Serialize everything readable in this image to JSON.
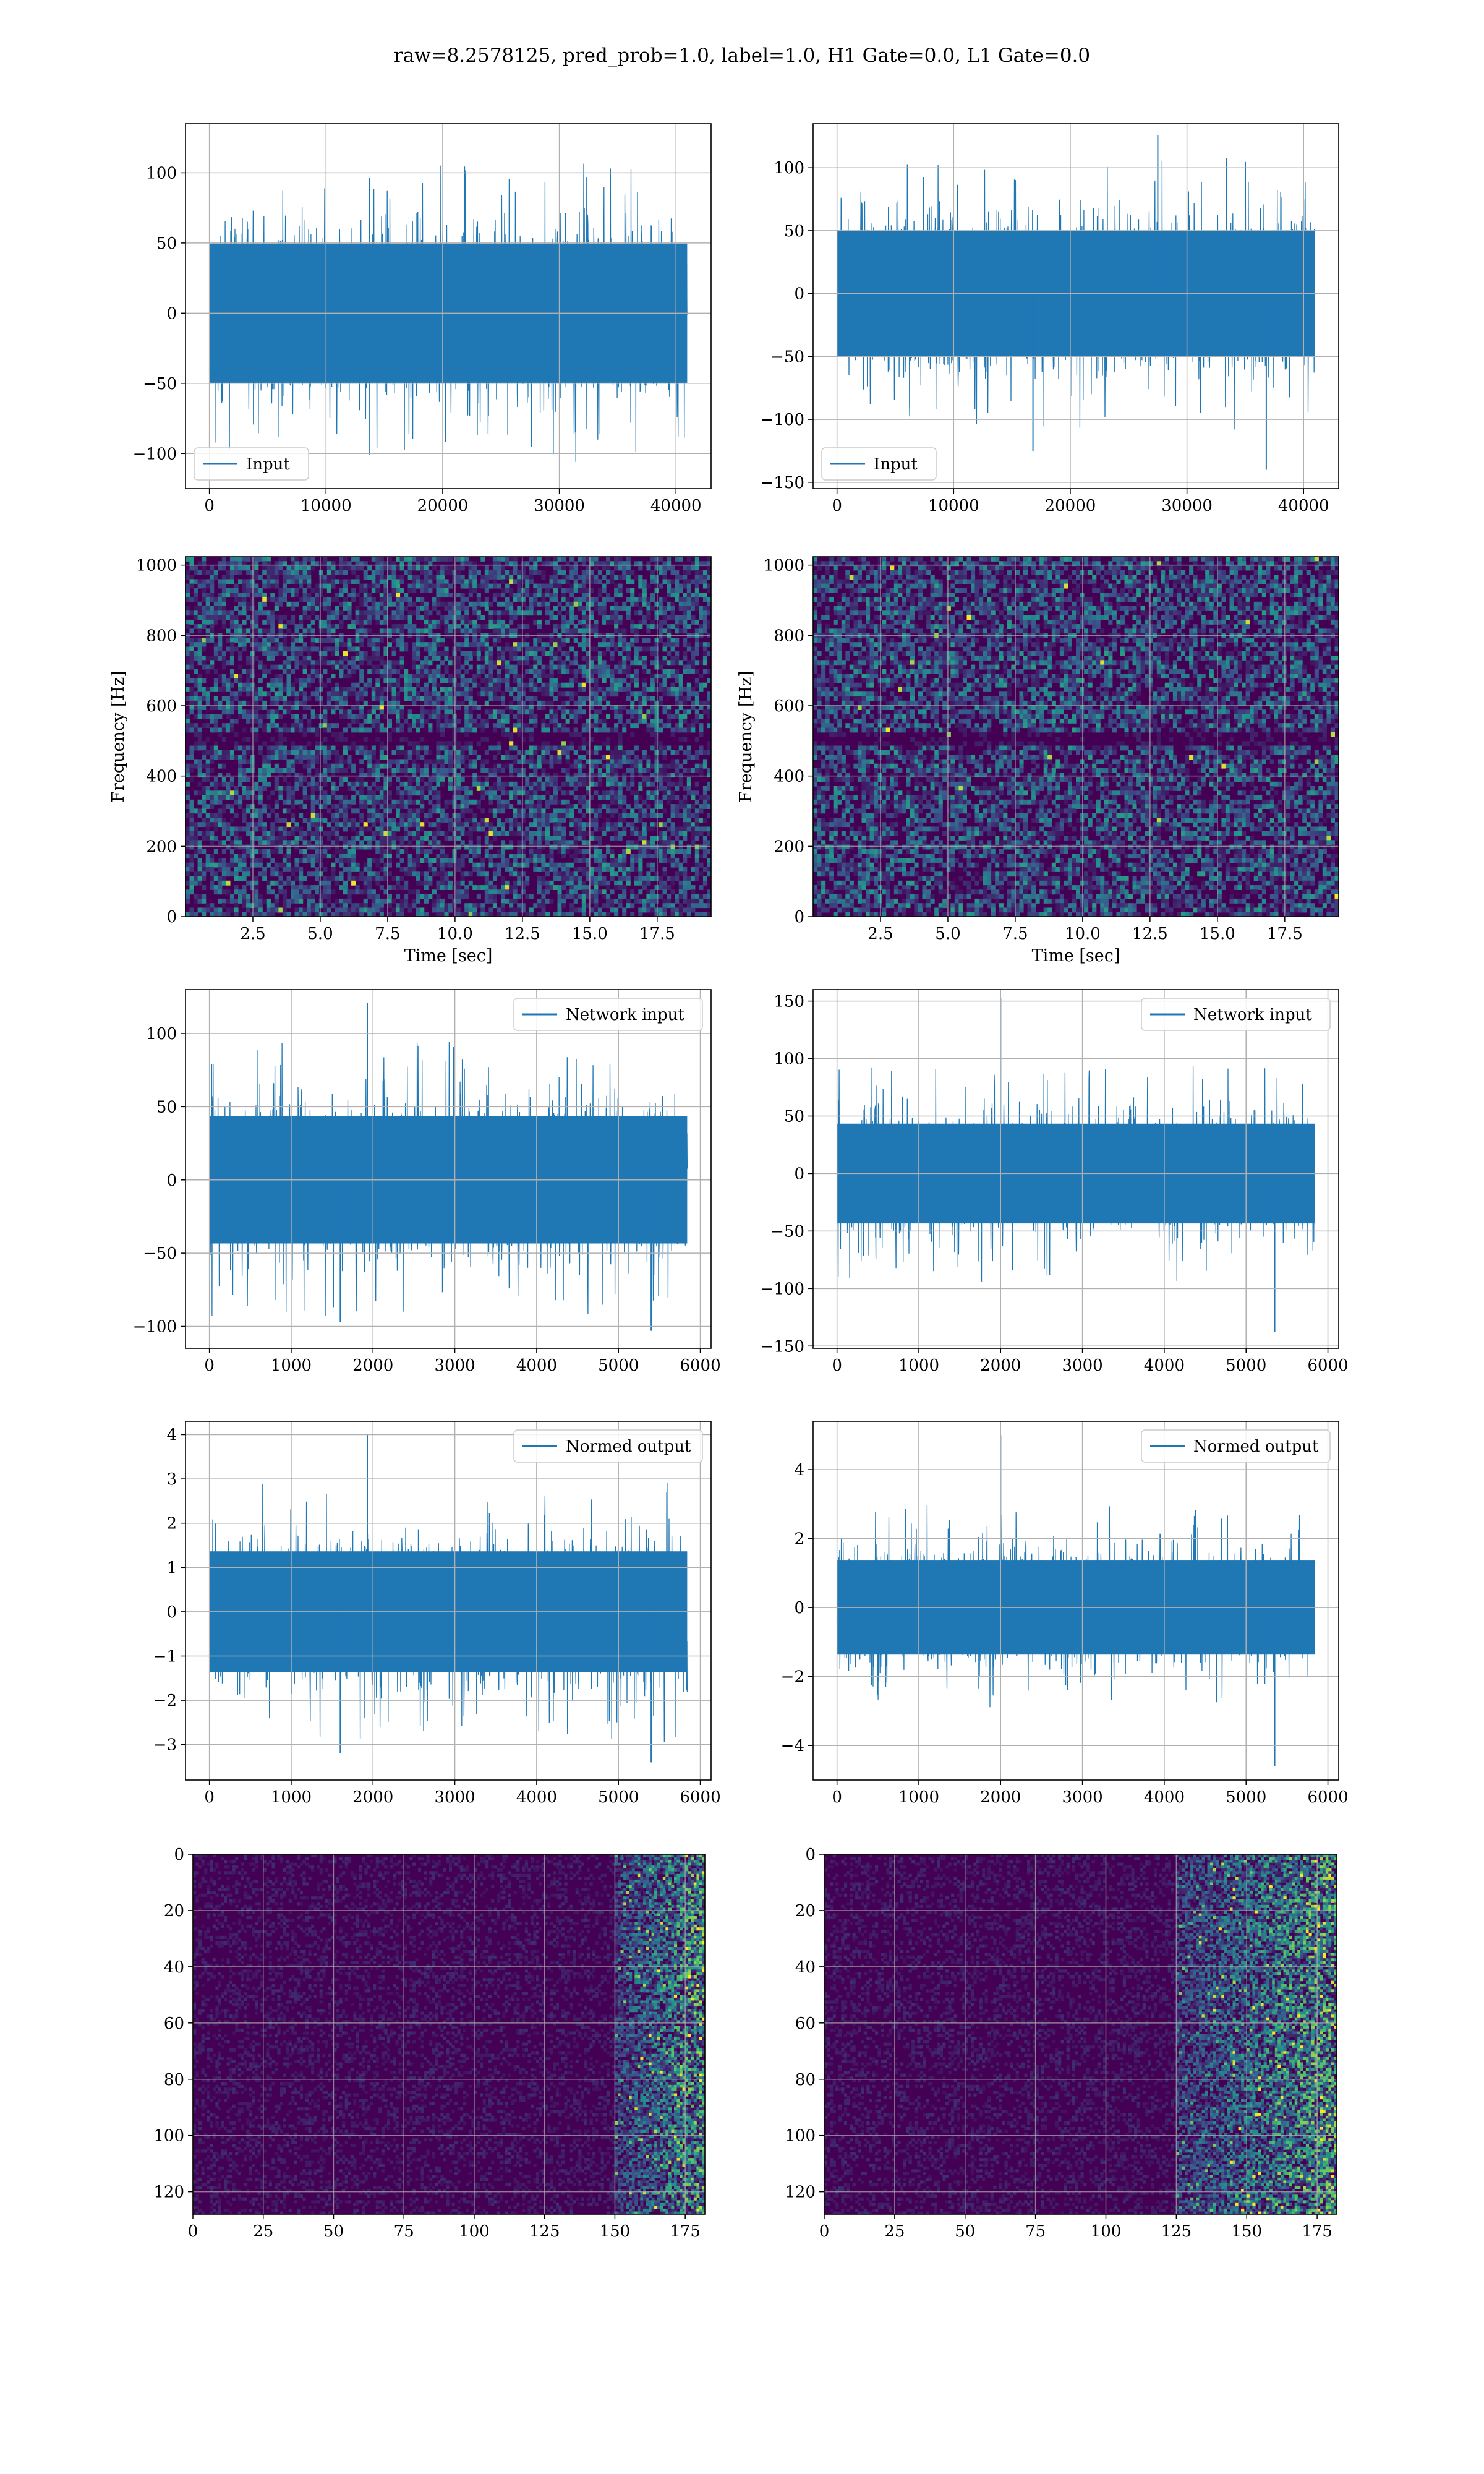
{
  "suptitle": "raw=8.2578125, pred_prob=1.0, label=1.0, H1 Gate=0.0, L1 Gate=0.0",
  "colors": {
    "series": "#1f77b4",
    "grid": "#b0b0b0",
    "viridis_dark": "#440154",
    "viridis_mid": "#21918c",
    "viridis_bright": "#fde725"
  },
  "chart_data": [
    {
      "id": "input-h1",
      "type": "line",
      "style": "noise",
      "legend": "Input",
      "legend_loc": "lower left",
      "x_range": [
        0,
        40960
      ],
      "xlim": [
        -2048,
        43008
      ],
      "ylim": [
        -125,
        135
      ],
      "xticks": [
        0,
        10000,
        20000,
        30000,
        40000
      ],
      "xticklabels": [
        "0",
        "10000",
        "20000",
        "30000",
        "40000"
      ],
      "yticks": [
        -100,
        -50,
        0,
        50,
        100
      ],
      "yticklabels": [
        "−100",
        "−50",
        "0",
        "50",
        "100"
      ],
      "y_extent": [
        -118,
        124
      ],
      "envelope": 80,
      "grid": true,
      "xlabel": "",
      "ylabel": "",
      "peaks": []
    },
    {
      "id": "input-l1",
      "type": "line",
      "style": "noise",
      "legend": "Input",
      "legend_loc": "lower left",
      "x_range": [
        0,
        40960
      ],
      "xlim": [
        -2048,
        43008
      ],
      "ylim": [
        -155,
        135
      ],
      "xticks": [
        0,
        10000,
        20000,
        30000,
        40000
      ],
      "xticklabels": [
        "0",
        "10000",
        "20000",
        "30000",
        "40000"
      ],
      "yticks": [
        -150,
        -100,
        -50,
        0,
        50,
        100
      ],
      "yticklabels": [
        "−150",
        "−100",
        "−50",
        "0",
        "50",
        "100"
      ],
      "y_extent": [
        -140,
        126
      ],
      "envelope": 80,
      "grid": true,
      "xlabel": "",
      "ylabel": "",
      "peaks": [
        [
          16800,
          -125
        ],
        [
          36800,
          -140
        ],
        [
          27500,
          126
        ]
      ]
    },
    {
      "id": "spec-h1",
      "type": "heatmap",
      "style": "spectrogram",
      "xlim": [
        0,
        19.5
      ],
      "ylim": [
        0,
        1024
      ],
      "xticks": [
        2.5,
        5.0,
        7.5,
        10.0,
        12.5,
        15.0,
        17.5
      ],
      "xticklabels": [
        "2.5",
        "5.0",
        "7.5",
        "10.0",
        "12.5",
        "15.0",
        "17.5"
      ],
      "yticks": [
        0,
        200,
        400,
        600,
        800,
        1000
      ],
      "yticklabels": [
        "0",
        "200",
        "400",
        "600",
        "800",
        "1000"
      ],
      "xlabel": "Time [sec]",
      "ylabel": "Frequency [Hz]",
      "dark_band": [
        480,
        520
      ],
      "grid": true
    },
    {
      "id": "spec-l1",
      "type": "heatmap",
      "style": "spectrogram",
      "xlim": [
        0,
        19.5
      ],
      "ylim": [
        0,
        1024
      ],
      "xticks": [
        2.5,
        5.0,
        7.5,
        10.0,
        12.5,
        15.0,
        17.5
      ],
      "xticklabels": [
        "2.5",
        "5.0",
        "7.5",
        "10.0",
        "12.5",
        "15.0",
        "17.5"
      ],
      "yticks": [
        0,
        200,
        400,
        600,
        800,
        1000
      ],
      "yticklabels": [
        "0",
        "200",
        "400",
        "600",
        "800",
        "1000"
      ],
      "xlabel": "Time [sec]",
      "ylabel": "Frequency [Hz]",
      "dark_band": [
        480,
        520
      ],
      "grid": true
    },
    {
      "id": "network-h1",
      "type": "line",
      "style": "noise",
      "legend": "Network input",
      "legend_loc": "upper right",
      "x_range": [
        0,
        5840
      ],
      "xlim": [
        -292,
        6132
      ],
      "ylim": [
        -115,
        130
      ],
      "xticks": [
        0,
        1000,
        2000,
        3000,
        4000,
        5000,
        6000
      ],
      "xticklabels": [
        "0",
        "1000",
        "2000",
        "3000",
        "4000",
        "5000",
        "6000"
      ],
      "yticks": [
        -100,
        -50,
        0,
        50,
        100
      ],
      "yticklabels": [
        "−100",
        "−50",
        "0",
        "50",
        "100"
      ],
      "y_extent": [
        -103,
        121
      ],
      "envelope": 70,
      "grid": true,
      "xlabel": "",
      "ylabel": "",
      "peaks": [
        [
          1930,
          121
        ],
        [
          5400,
          -103
        ],
        [
          1600,
          -97
        ]
      ]
    },
    {
      "id": "network-l1",
      "type": "line",
      "style": "noise",
      "legend": "Network input",
      "legend_loc": "upper right",
      "x_range": [
        0,
        5840
      ],
      "xlim": [
        -292,
        6132
      ],
      "ylim": [
        -152,
        160
      ],
      "xticks": [
        0,
        1000,
        2000,
        3000,
        4000,
        5000,
        6000
      ],
      "xticklabels": [
        "0",
        "1000",
        "2000",
        "3000",
        "4000",
        "5000",
        "6000"
      ],
      "yticks": [
        -150,
        -100,
        -50,
        0,
        50,
        100,
        150
      ],
      "yticklabels": [
        "−150",
        "−100",
        "−50",
        "0",
        "50",
        "100",
        "150"
      ],
      "y_extent": [
        -138,
        153
      ],
      "envelope": 70,
      "grid": true,
      "xlabel": "",
      "ylabel": "",
      "peaks": [
        [
          2000,
          153
        ],
        [
          5350,
          -138
        ]
      ]
    },
    {
      "id": "normed-h1",
      "type": "line",
      "style": "noise",
      "legend": "Normed output",
      "legend_loc": "upper right",
      "x_range": [
        0,
        5840
      ],
      "xlim": [
        -292,
        6132
      ],
      "ylim": [
        -3.8,
        4.3
      ],
      "xticks": [
        0,
        1000,
        2000,
        3000,
        4000,
        5000,
        6000
      ],
      "xticklabels": [
        "0",
        "1000",
        "2000",
        "3000",
        "4000",
        "5000",
        "6000"
      ],
      "yticks": [
        -3,
        -2,
        -1,
        0,
        1,
        2,
        3,
        4
      ],
      "yticklabels": [
        "−3",
        "−2",
        "−1",
        "0",
        "1",
        "2",
        "3",
        "4"
      ],
      "y_extent": [
        -3.4,
        4.0
      ],
      "envelope": 2.2,
      "grid": true,
      "xlabel": "",
      "ylabel": "",
      "peaks": [
        [
          1930,
          4.0
        ],
        [
          5400,
          -3.4
        ],
        [
          1600,
          -3.2
        ]
      ]
    },
    {
      "id": "normed-l1",
      "type": "line",
      "style": "noise",
      "legend": "Normed output",
      "legend_loc": "upper right",
      "x_range": [
        0,
        5840
      ],
      "xlim": [
        -292,
        6132
      ],
      "ylim": [
        -5.0,
        5.4
      ],
      "xticks": [
        0,
        1000,
        2000,
        3000,
        4000,
        5000,
        6000
      ],
      "xticklabels": [
        "0",
        "1000",
        "2000",
        "3000",
        "4000",
        "5000",
        "6000"
      ],
      "yticks": [
        -4,
        -2,
        0,
        2,
        4
      ],
      "yticklabels": [
        "−4",
        "−2",
        "0",
        "2",
        "4"
      ],
      "y_extent": [
        -4.6,
        5.0
      ],
      "envelope": 2.2,
      "grid": true,
      "xlabel": "",
      "ylabel": "",
      "peaks": [
        [
          2000,
          5.0
        ],
        [
          5350,
          -4.6
        ]
      ]
    },
    {
      "id": "features-h1",
      "type": "heatmap",
      "style": "features",
      "xlim": [
        0,
        182
      ],
      "ylim": [
        128,
        0
      ],
      "xticks": [
        0,
        25,
        50,
        75,
        100,
        125,
        150,
        175
      ],
      "xticklabels": [
        "0",
        "25",
        "50",
        "75",
        "100",
        "125",
        "150",
        "175"
      ],
      "yticks": [
        0,
        20,
        40,
        60,
        80,
        100,
        120
      ],
      "yticklabels": [
        "0",
        "20",
        "40",
        "60",
        "80",
        "100",
        "120"
      ],
      "xlabel": "",
      "ylabel": "",
      "active_columns": [
        150,
        182
      ],
      "grid": true
    },
    {
      "id": "features-l1",
      "type": "heatmap",
      "style": "features",
      "xlim": [
        0,
        182
      ],
      "ylim": [
        128,
        0
      ],
      "xticks": [
        0,
        25,
        50,
        75,
        100,
        125,
        150,
        175
      ],
      "xticklabels": [
        "0",
        "25",
        "50",
        "75",
        "100",
        "125",
        "150",
        "175"
      ],
      "yticks": [
        0,
        20,
        40,
        60,
        80,
        100,
        120
      ],
      "yticklabels": [
        "0",
        "20",
        "40",
        "60",
        "80",
        "100",
        "120"
      ],
      "xlabel": "",
      "ylabel": "",
      "active_columns": [
        125,
        182
      ],
      "grid": true
    }
  ]
}
